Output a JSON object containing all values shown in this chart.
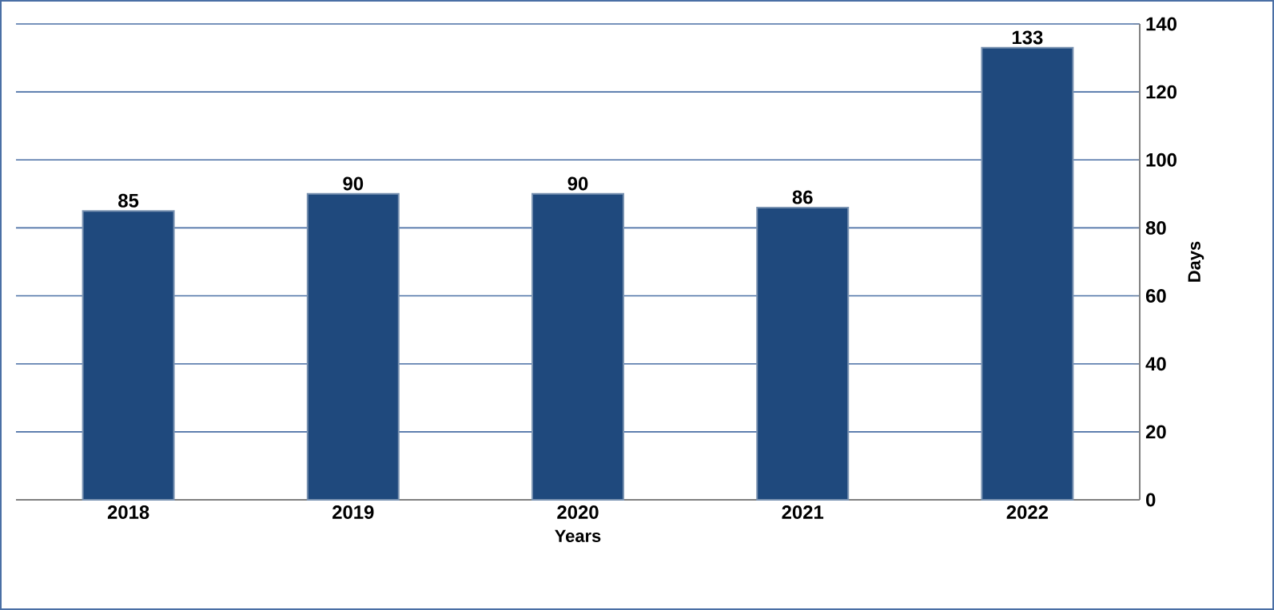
{
  "chart_data": {
    "type": "bar",
    "xlabel": "Years",
    "ylabel": "Days",
    "categories": [
      "2018",
      "2019",
      "2020",
      "2021",
      "2022"
    ],
    "values": [
      85,
      90,
      90,
      86,
      133
    ],
    "color": "#1f497d",
    "ylim": [
      0,
      140
    ],
    "yticks": [
      0,
      20,
      40,
      60,
      80,
      100,
      120,
      140
    ],
    "grid": "y",
    "data_labels": true
  }
}
